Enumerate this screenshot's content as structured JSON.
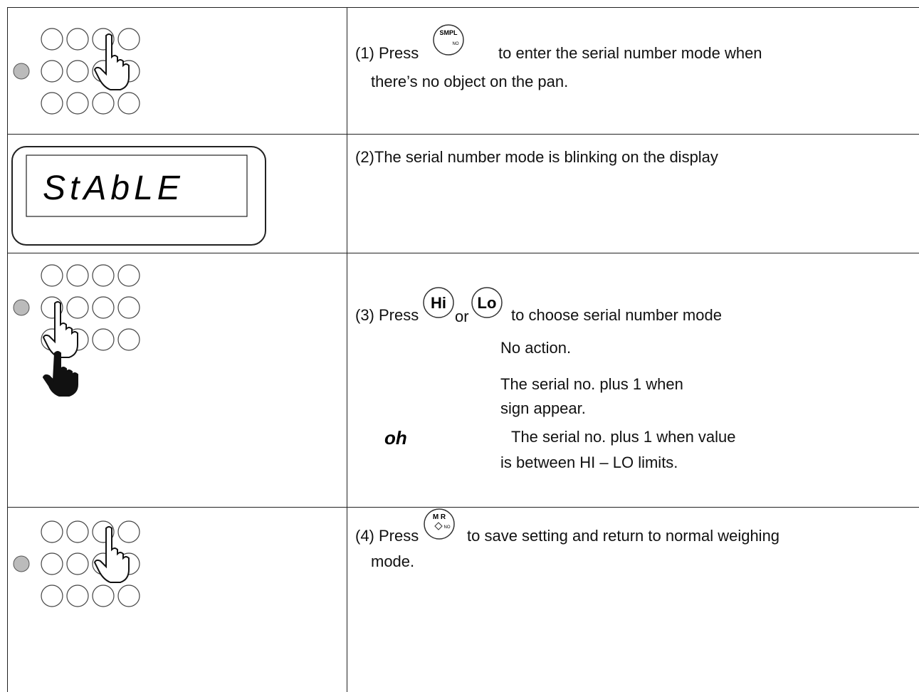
{
  "rows": [
    {
      "step": "(1) Press",
      "key": {
        "label": "SMPL",
        "sub": "NO"
      },
      "lines": [
        "to enter the serial number mode when",
        "there’s no object on the pan."
      ]
    },
    {
      "display": "StAbLE",
      "text": "(2)The serial number mode is blinking on the display"
    },
    {
      "step": "(3) Press",
      "keys": [
        "Hi",
        "Lo"
      ],
      "or": "or",
      "text": "to choose serial number mode",
      "options": [
        {
          "lines": [
            "No action."
          ]
        },
        {
          "lines": [
            "The serial no. plus 1 when",
            "sign appear."
          ]
        },
        {
          "sign": "oh",
          "lines": [
            "The serial no. plus 1 when value",
            "is between HI – LO limits."
          ]
        }
      ]
    },
    {
      "step": "(4) Press",
      "key": {
        "label": "M R",
        "sub": "NO"
      },
      "lines": [
        "to save setting and return to normal weighing",
        "mode."
      ]
    }
  ]
}
